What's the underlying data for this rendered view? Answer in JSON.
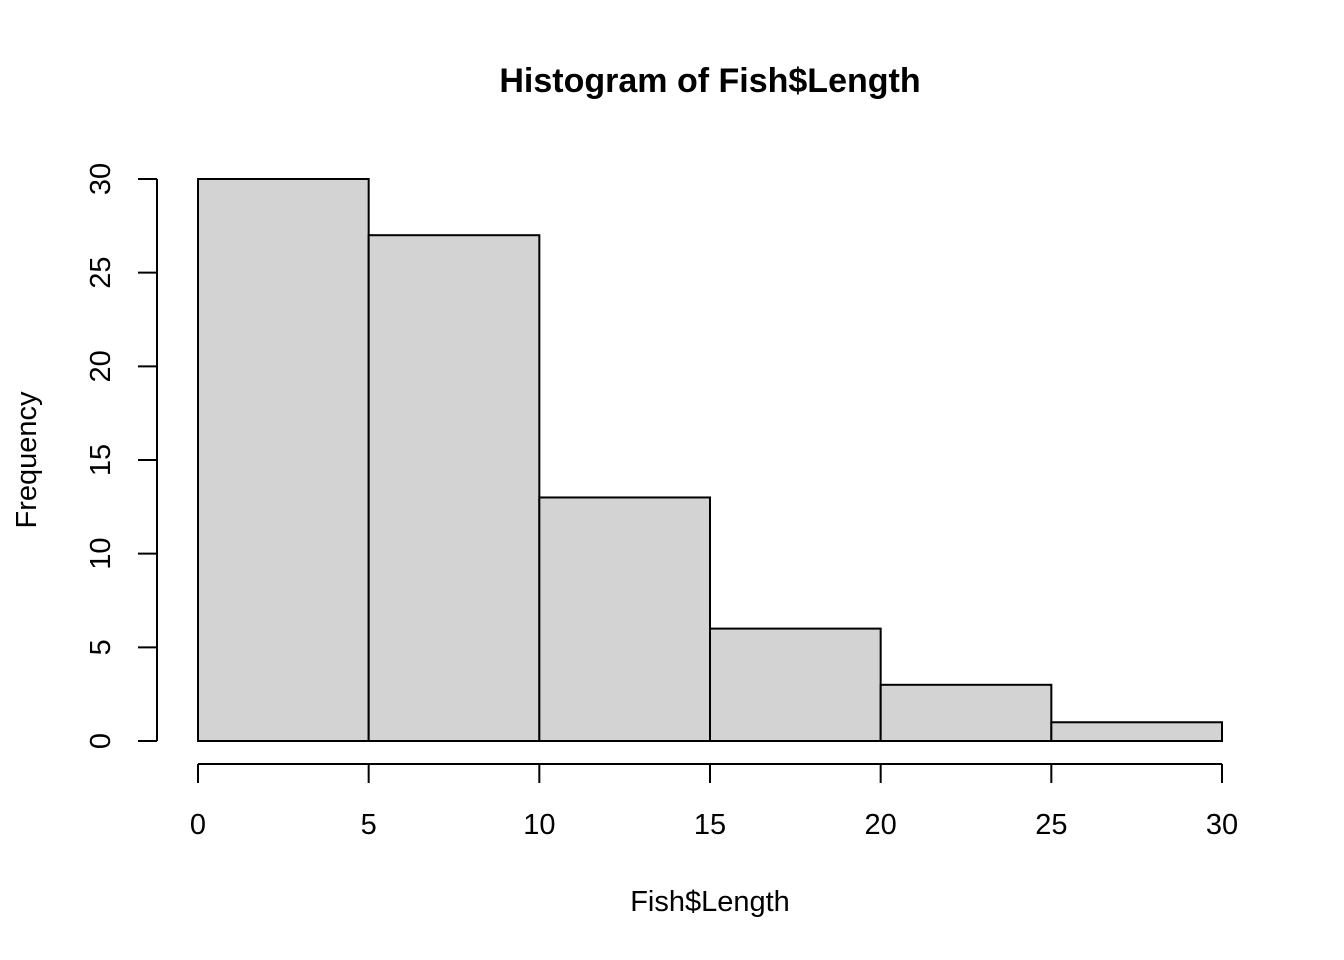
{
  "chart_data": {
    "type": "bar",
    "histogram": true,
    "title": "Histogram of Fish$Length",
    "xlabel": "Fish$Length",
    "ylabel": "Frequency",
    "bins": [
      {
        "start": 0,
        "end": 5,
        "count": 30
      },
      {
        "start": 5,
        "end": 10,
        "count": 27
      },
      {
        "start": 10,
        "end": 15,
        "count": 13
      },
      {
        "start": 15,
        "end": 20,
        "count": 6
      },
      {
        "start": 20,
        "end": 25,
        "count": 3
      },
      {
        "start": 25,
        "end": 30,
        "count": 1
      }
    ],
    "xlim": [
      0,
      30
    ],
    "ylim": [
      0,
      30
    ],
    "x_ticks": [
      "0",
      "5",
      "10",
      "15",
      "20",
      "25",
      "30"
    ],
    "y_ticks": [
      "0",
      "5",
      "10",
      "15",
      "20",
      "25",
      "30"
    ],
    "bar_color": "#d3d3d3",
    "grid": false,
    "legend": "none"
  }
}
